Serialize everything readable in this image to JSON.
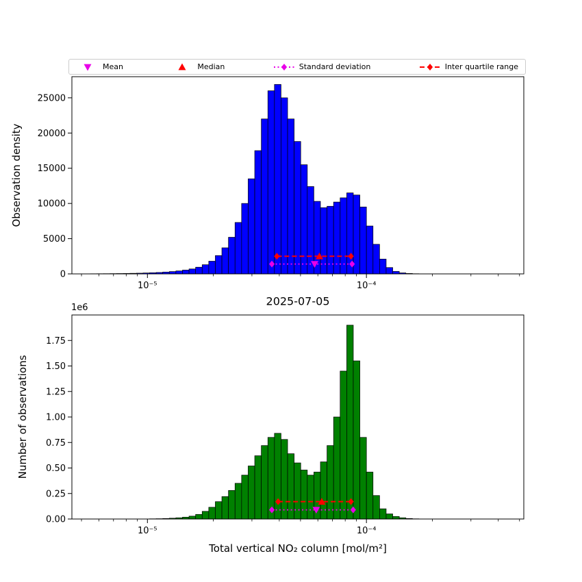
{
  "legend": {
    "border_color": "#cccccc",
    "items": [
      {
        "label": "Mean",
        "marker": "triangle-down",
        "color": "#e800e8"
      },
      {
        "label": "Median",
        "marker": "triangle-up",
        "color": "#ff0000"
      },
      {
        "label": "Standard deviation",
        "marker": "diamond-dotted",
        "color": "#e800e8"
      },
      {
        "label": "Inter quartile range",
        "marker": "diamond-dashed",
        "color": "#ff0000"
      }
    ]
  },
  "chart_data": [
    {
      "type": "bar",
      "panel": "top",
      "title": "",
      "ylabel": "Observation density",
      "xlabel": "",
      "x_scale": "log",
      "xlim": [
        4.52e-06,
        0.000523
      ],
      "ylim": [
        0,
        28000
      ],
      "grid": false,
      "bar_color": "#0000ff",
      "bar_edge_color": "#000000",
      "yticks": [
        0,
        5000,
        10000,
        15000,
        20000,
        25000
      ],
      "ytick_labels": [
        "0",
        "5000",
        "10000",
        "15000",
        "20000",
        "25000"
      ],
      "xticks": [
        {
          "value": 1e-05,
          "label": "10⁻⁵"
        },
        {
          "value": 0.0001,
          "label": "10⁻⁴"
        }
      ],
      "bins_log10_start": -5.245,
      "bins_log10_step": 0.03,
      "values": [
        20,
        25,
        30,
        40,
        50,
        60,
        80,
        100,
        130,
        160,
        200,
        260,
        330,
        420,
        540,
        700,
        950,
        1300,
        1800,
        2600,
        3700,
        5200,
        7300,
        10000,
        13500,
        17500,
        22000,
        26000,
        26900,
        25000,
        22000,
        18800,
        15500,
        12400,
        10300,
        9400,
        9600,
        10200,
        10800,
        11500,
        11200,
        9500,
        6800,
        4200,
        2100,
        900,
        350,
        140,
        60,
        25,
        10,
        5,
        0
      ],
      "stats": {
        "mean": 5.8e-05,
        "median": 6.1e-05,
        "std_lo": 3.7e-05,
        "std_hi": 8.6e-05,
        "std_y": 1400,
        "iqr_lo": 3.9e-05,
        "iqr_hi": 8.5e-05,
        "iqr_y": 2500,
        "mean_color": "#e800e8",
        "median_color": "#ff0000"
      }
    },
    {
      "type": "bar",
      "panel": "bottom",
      "title": "2025-07-05",
      "ylabel": "Number of observations",
      "xlabel": "Total vertical NO₂ column [mol/m²]",
      "offset_label": "1e6",
      "x_scale": "log",
      "xlim": [
        4.52e-06,
        0.000523
      ],
      "ylim": [
        0,
        2000000
      ],
      "grid": false,
      "bar_color": "#008000",
      "bar_edge_color": "#000000",
      "yticks": [
        0,
        250000,
        500000,
        750000,
        1000000,
        1250000,
        1500000,
        1750000
      ],
      "ytick_labels": [
        "0.00",
        "0.25",
        "0.50",
        "0.75",
        "1.00",
        "1.25",
        "1.50",
        "1.75"
      ],
      "xticks": [
        {
          "value": 1e-05,
          "label": "10⁻⁵"
        },
        {
          "value": 0.0001,
          "label": "10⁻⁴"
        }
      ],
      "bins_log10_start": -5.245,
      "bins_log10_step": 0.03,
      "values": [
        0,
        0,
        0,
        0,
        0,
        0,
        0,
        0,
        1000,
        2000,
        3000,
        5000,
        8000,
        12000,
        18000,
        28000,
        45000,
        75000,
        115000,
        170000,
        220000,
        280000,
        350000,
        430000,
        520000,
        620000,
        720000,
        800000,
        840000,
        780000,
        640000,
        550000,
        480000,
        430000,
        460000,
        560000,
        720000,
        1000000,
        1450000,
        1900000,
        1550000,
        800000,
        460000,
        230000,
        100000,
        50000,
        25000,
        12000,
        5000,
        2000,
        1000,
        0,
        0
      ],
      "stats": {
        "mean": 5.9e-05,
        "median": 6.25e-05,
        "std_lo": 3.7e-05,
        "std_hi": 8.7e-05,
        "std_y": 90000,
        "iqr_lo": 3.95e-05,
        "iqr_hi": 8.5e-05,
        "iqr_y": 170000,
        "mean_color": "#e800e8",
        "median_color": "#ff0000"
      }
    }
  ]
}
